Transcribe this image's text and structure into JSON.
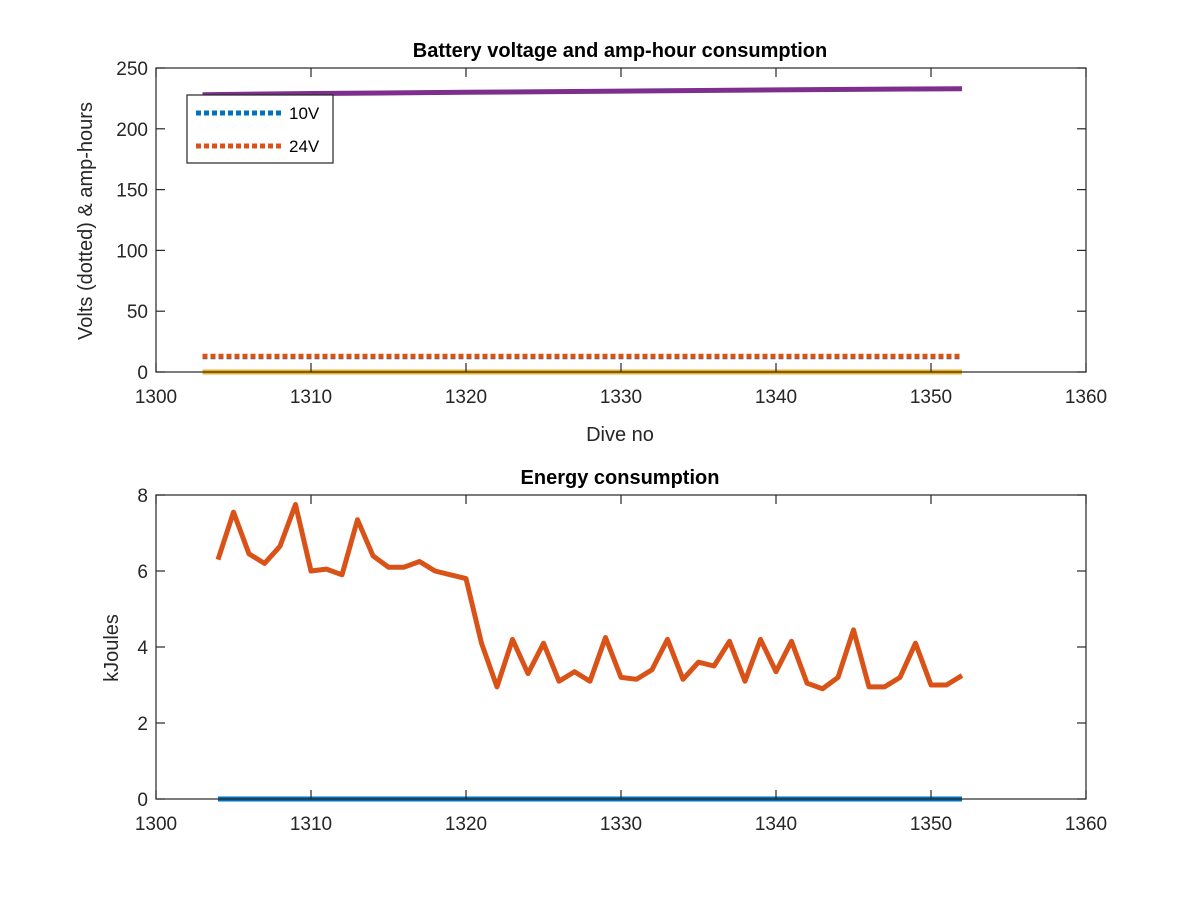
{
  "colors": {
    "blue": "#0072BD",
    "orange": "#D95319",
    "yellow": "#EDB120",
    "purple": "#7E2F8E",
    "axis": "#262626",
    "background": "#ffffff"
  },
  "chart_data": [
    {
      "type": "line",
      "title": "Battery voltage and amp-hour consumption",
      "xlabel": "Dive no",
      "ylabel": "Volts (dotted) & amp-hours",
      "xlim": [
        1300,
        1360
      ],
      "ylim": [
        0,
        250
      ],
      "xticks": [
        "1300",
        "1310",
        "1320",
        "1330",
        "1340",
        "1350",
        "1360"
      ],
      "yticks": [
        "0",
        "50",
        "100",
        "150",
        "200",
        "250"
      ],
      "grid": false,
      "legend": {
        "placement": "top-left",
        "entries": [
          "10V",
          "24V"
        ]
      },
      "series": [
        {
          "name": "10V",
          "color": "#0072BD",
          "style": "dotted",
          "x": [
            1303,
            1352
          ],
          "values": [
            12.5,
            12.5
          ]
        },
        {
          "name": "24V",
          "color": "#D95319",
          "style": "dotted",
          "x": [
            1303,
            1352
          ],
          "values": [
            13,
            13
          ]
        },
        {
          "color": "#EDB120",
          "style": "solid",
          "x": [
            1303,
            1352
          ],
          "values": [
            0,
            0
          ]
        },
        {
          "color": "#7E2F8E",
          "style": "solid",
          "x": [
            1303,
            1310,
            1320,
            1330,
            1340,
            1352
          ],
          "values": [
            228,
            229,
            230,
            231,
            232,
            233
          ]
        }
      ]
    },
    {
      "type": "line",
      "title": "Energy consumption",
      "xlabel": "",
      "ylabel": "kJoules",
      "xlim": [
        1300,
        1360
      ],
      "ylim": [
        0,
        8
      ],
      "xticks": [
        "1300",
        "1310",
        "1320",
        "1330",
        "1340",
        "1350",
        "1360"
      ],
      "yticks": [
        "0",
        "2",
        "4",
        "6",
        "8"
      ],
      "grid": false,
      "series": [
        {
          "color": "#D95319",
          "style": "solid",
          "x": [
            1304,
            1305,
            1306,
            1307,
            1308,
            1309,
            1310,
            1311,
            1312,
            1313,
            1314,
            1315,
            1316,
            1317,
            1318,
            1319,
            1320,
            1321,
            1322,
            1323,
            1324,
            1325,
            1326,
            1327,
            1328,
            1329,
            1330,
            1331,
            1332,
            1333,
            1334,
            1335,
            1336,
            1337,
            1338,
            1339,
            1340,
            1341,
            1342,
            1343,
            1344,
            1345,
            1346,
            1347,
            1348,
            1349,
            1350,
            1351,
            1352
          ],
          "values": [
            6.3,
            7.55,
            6.45,
            6.2,
            6.65,
            7.75,
            6.0,
            6.05,
            5.9,
            7.35,
            6.4,
            6.1,
            6.1,
            6.25,
            6.0,
            5.9,
            5.8,
            4.1,
            2.95,
            4.2,
            3.3,
            4.1,
            3.1,
            3.35,
            3.1,
            4.25,
            3.2,
            3.15,
            3.4,
            4.2,
            3.15,
            3.6,
            3.5,
            4.15,
            3.1,
            4.2,
            3.35,
            4.15,
            3.05,
            2.9,
            3.2,
            4.45,
            2.95,
            2.95,
            3.2,
            4.1,
            3.0,
            3.0,
            3.25
          ]
        },
        {
          "color": "#0072BD",
          "style": "solid",
          "x": [
            1304,
            1352
          ],
          "values": [
            0,
            0
          ]
        }
      ]
    }
  ]
}
